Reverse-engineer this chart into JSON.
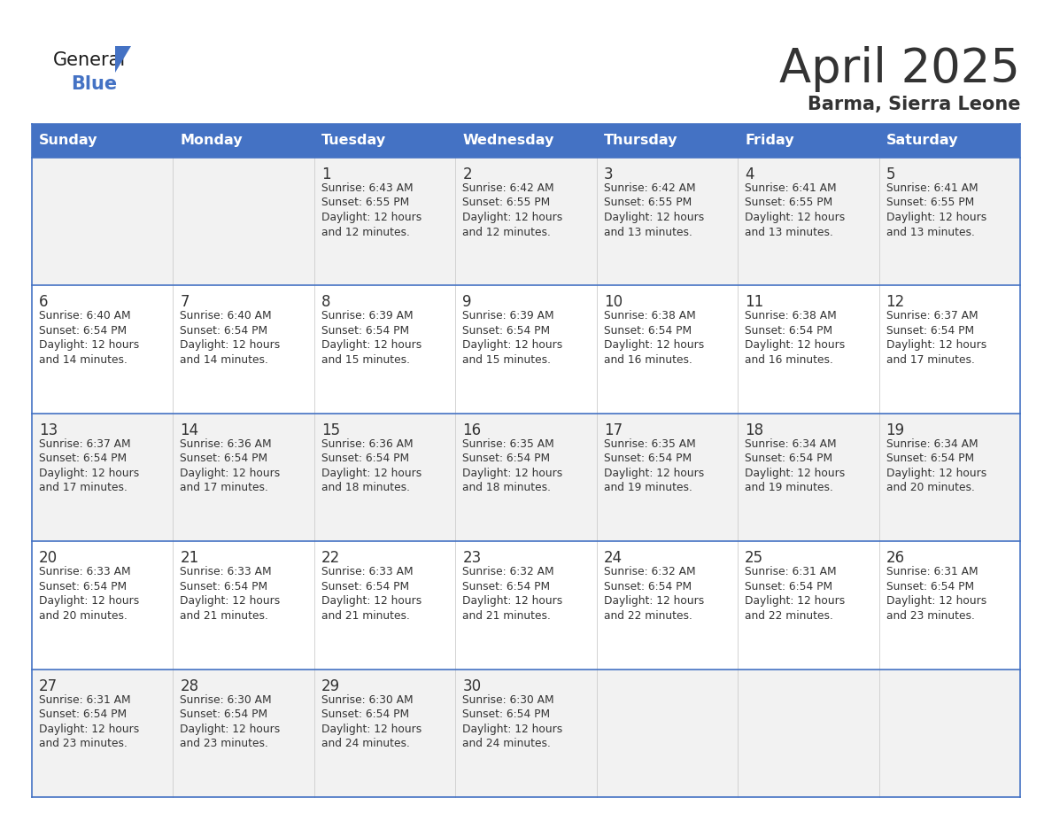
{
  "title": "April 2025",
  "subtitle": "Barma, Sierra Leone",
  "days_of_week": [
    "Sunday",
    "Monday",
    "Tuesday",
    "Wednesday",
    "Thursday",
    "Friday",
    "Saturday"
  ],
  "header_bg": "#4472C4",
  "header_text": "#FFFFFF",
  "cell_bg_odd": "#F2F2F2",
  "cell_bg_even": "#FFFFFF",
  "border_color": "#4472C4",
  "cell_border_color": "#AAAAAA",
  "day_num_color": "#333333",
  "text_color": "#333333",
  "title_color": "#333333",
  "logo_general_color": "#1a1a1a",
  "logo_blue_color": "#4472C4",
  "logo_triangle_color": "#4472C4",
  "calendar": [
    [
      {
        "day": "",
        "sunrise": "",
        "sunset": "",
        "daylight": ""
      },
      {
        "day": "",
        "sunrise": "",
        "sunset": "",
        "daylight": ""
      },
      {
        "day": "1",
        "sunrise": "Sunrise: 6:43 AM",
        "sunset": "Sunset: 6:55 PM",
        "daylight": "Daylight: 12 hours\nand 12 minutes."
      },
      {
        "day": "2",
        "sunrise": "Sunrise: 6:42 AM",
        "sunset": "Sunset: 6:55 PM",
        "daylight": "Daylight: 12 hours\nand 12 minutes."
      },
      {
        "day": "3",
        "sunrise": "Sunrise: 6:42 AM",
        "sunset": "Sunset: 6:55 PM",
        "daylight": "Daylight: 12 hours\nand 13 minutes."
      },
      {
        "day": "4",
        "sunrise": "Sunrise: 6:41 AM",
        "sunset": "Sunset: 6:55 PM",
        "daylight": "Daylight: 12 hours\nand 13 minutes."
      },
      {
        "day": "5",
        "sunrise": "Sunrise: 6:41 AM",
        "sunset": "Sunset: 6:55 PM",
        "daylight": "Daylight: 12 hours\nand 13 minutes."
      }
    ],
    [
      {
        "day": "6",
        "sunrise": "Sunrise: 6:40 AM",
        "sunset": "Sunset: 6:54 PM",
        "daylight": "Daylight: 12 hours\nand 14 minutes."
      },
      {
        "day": "7",
        "sunrise": "Sunrise: 6:40 AM",
        "sunset": "Sunset: 6:54 PM",
        "daylight": "Daylight: 12 hours\nand 14 minutes."
      },
      {
        "day": "8",
        "sunrise": "Sunrise: 6:39 AM",
        "sunset": "Sunset: 6:54 PM",
        "daylight": "Daylight: 12 hours\nand 15 minutes."
      },
      {
        "day": "9",
        "sunrise": "Sunrise: 6:39 AM",
        "sunset": "Sunset: 6:54 PM",
        "daylight": "Daylight: 12 hours\nand 15 minutes."
      },
      {
        "day": "10",
        "sunrise": "Sunrise: 6:38 AM",
        "sunset": "Sunset: 6:54 PM",
        "daylight": "Daylight: 12 hours\nand 16 minutes."
      },
      {
        "day": "11",
        "sunrise": "Sunrise: 6:38 AM",
        "sunset": "Sunset: 6:54 PM",
        "daylight": "Daylight: 12 hours\nand 16 minutes."
      },
      {
        "day": "12",
        "sunrise": "Sunrise: 6:37 AM",
        "sunset": "Sunset: 6:54 PM",
        "daylight": "Daylight: 12 hours\nand 17 minutes."
      }
    ],
    [
      {
        "day": "13",
        "sunrise": "Sunrise: 6:37 AM",
        "sunset": "Sunset: 6:54 PM",
        "daylight": "Daylight: 12 hours\nand 17 minutes."
      },
      {
        "day": "14",
        "sunrise": "Sunrise: 6:36 AM",
        "sunset": "Sunset: 6:54 PM",
        "daylight": "Daylight: 12 hours\nand 17 minutes."
      },
      {
        "day": "15",
        "sunrise": "Sunrise: 6:36 AM",
        "sunset": "Sunset: 6:54 PM",
        "daylight": "Daylight: 12 hours\nand 18 minutes."
      },
      {
        "day": "16",
        "sunrise": "Sunrise: 6:35 AM",
        "sunset": "Sunset: 6:54 PM",
        "daylight": "Daylight: 12 hours\nand 18 minutes."
      },
      {
        "day": "17",
        "sunrise": "Sunrise: 6:35 AM",
        "sunset": "Sunset: 6:54 PM",
        "daylight": "Daylight: 12 hours\nand 19 minutes."
      },
      {
        "day": "18",
        "sunrise": "Sunrise: 6:34 AM",
        "sunset": "Sunset: 6:54 PM",
        "daylight": "Daylight: 12 hours\nand 19 minutes."
      },
      {
        "day": "19",
        "sunrise": "Sunrise: 6:34 AM",
        "sunset": "Sunset: 6:54 PM",
        "daylight": "Daylight: 12 hours\nand 20 minutes."
      }
    ],
    [
      {
        "day": "20",
        "sunrise": "Sunrise: 6:33 AM",
        "sunset": "Sunset: 6:54 PM",
        "daylight": "Daylight: 12 hours\nand 20 minutes."
      },
      {
        "day": "21",
        "sunrise": "Sunrise: 6:33 AM",
        "sunset": "Sunset: 6:54 PM",
        "daylight": "Daylight: 12 hours\nand 21 minutes."
      },
      {
        "day": "22",
        "sunrise": "Sunrise: 6:33 AM",
        "sunset": "Sunset: 6:54 PM",
        "daylight": "Daylight: 12 hours\nand 21 minutes."
      },
      {
        "day": "23",
        "sunrise": "Sunrise: 6:32 AM",
        "sunset": "Sunset: 6:54 PM",
        "daylight": "Daylight: 12 hours\nand 21 minutes."
      },
      {
        "day": "24",
        "sunrise": "Sunrise: 6:32 AM",
        "sunset": "Sunset: 6:54 PM",
        "daylight": "Daylight: 12 hours\nand 22 minutes."
      },
      {
        "day": "25",
        "sunrise": "Sunrise: 6:31 AM",
        "sunset": "Sunset: 6:54 PM",
        "daylight": "Daylight: 12 hours\nand 22 minutes."
      },
      {
        "day": "26",
        "sunrise": "Sunrise: 6:31 AM",
        "sunset": "Sunset: 6:54 PM",
        "daylight": "Daylight: 12 hours\nand 23 minutes."
      }
    ],
    [
      {
        "day": "27",
        "sunrise": "Sunrise: 6:31 AM",
        "sunset": "Sunset: 6:54 PM",
        "daylight": "Daylight: 12 hours\nand 23 minutes."
      },
      {
        "day": "28",
        "sunrise": "Sunrise: 6:30 AM",
        "sunset": "Sunset: 6:54 PM",
        "daylight": "Daylight: 12 hours\nand 23 minutes."
      },
      {
        "day": "29",
        "sunrise": "Sunrise: 6:30 AM",
        "sunset": "Sunset: 6:54 PM",
        "daylight": "Daylight: 12 hours\nand 24 minutes."
      },
      {
        "day": "30",
        "sunrise": "Sunrise: 6:30 AM",
        "sunset": "Sunset: 6:54 PM",
        "daylight": "Daylight: 12 hours\nand 24 minutes."
      },
      {
        "day": "",
        "sunrise": "",
        "sunset": "",
        "daylight": ""
      },
      {
        "day": "",
        "sunrise": "",
        "sunset": "",
        "daylight": ""
      },
      {
        "day": "",
        "sunrise": "",
        "sunset": "",
        "daylight": ""
      }
    ]
  ]
}
